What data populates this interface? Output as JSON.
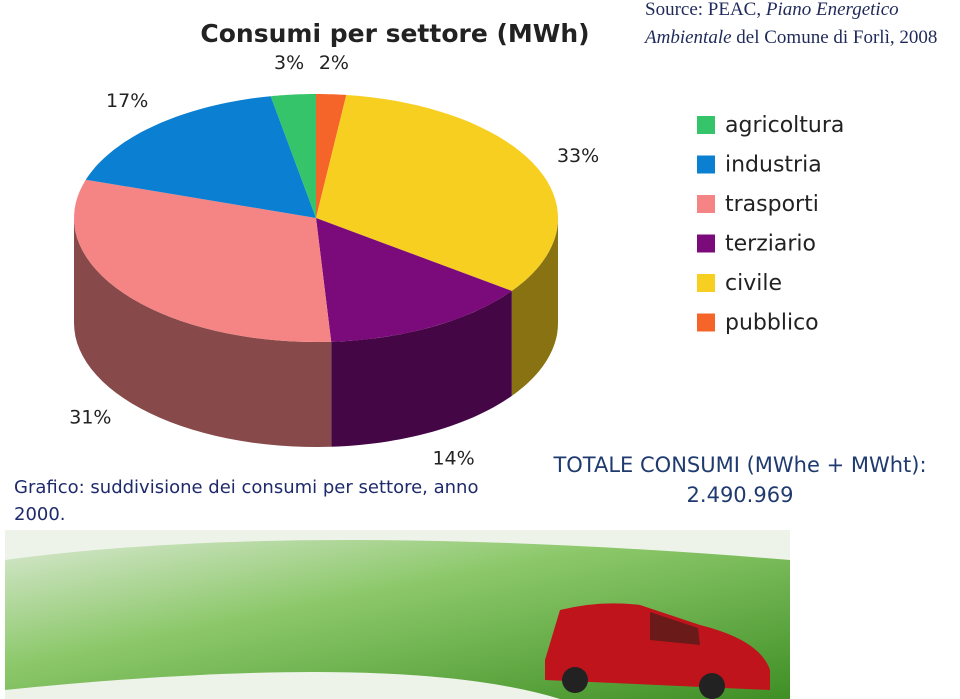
{
  "chart_data": {
    "type": "pie",
    "title": "Consumi per settore (MWh)",
    "categories": [
      "agricoltura",
      "industria",
      "trasporti",
      "terziario",
      "civile",
      "pubblico"
    ],
    "values": [
      3,
      17,
      31,
      14,
      33,
      2
    ],
    "value_labels": [
      "3%",
      "17%",
      "31%",
      "14%",
      "33%",
      "2%"
    ],
    "colors": [
      "#35c46a",
      "#0b7fd1",
      "#f58484",
      "#7b0a7b",
      "#f7cf21",
      "#f5652a"
    ],
    "legend": "right"
  },
  "source": [
    "Source: PEAC, ",
    "Piano Energetico Ambientale",
    " del Comune di Forlì, 2008"
  ],
  "caption": "Grafico: suddivisione dei consumi per settore, anno 2000.",
  "total": [
    "TOTALE CONSUMI (MWhe + MWht):",
    "2.490.969"
  ]
}
